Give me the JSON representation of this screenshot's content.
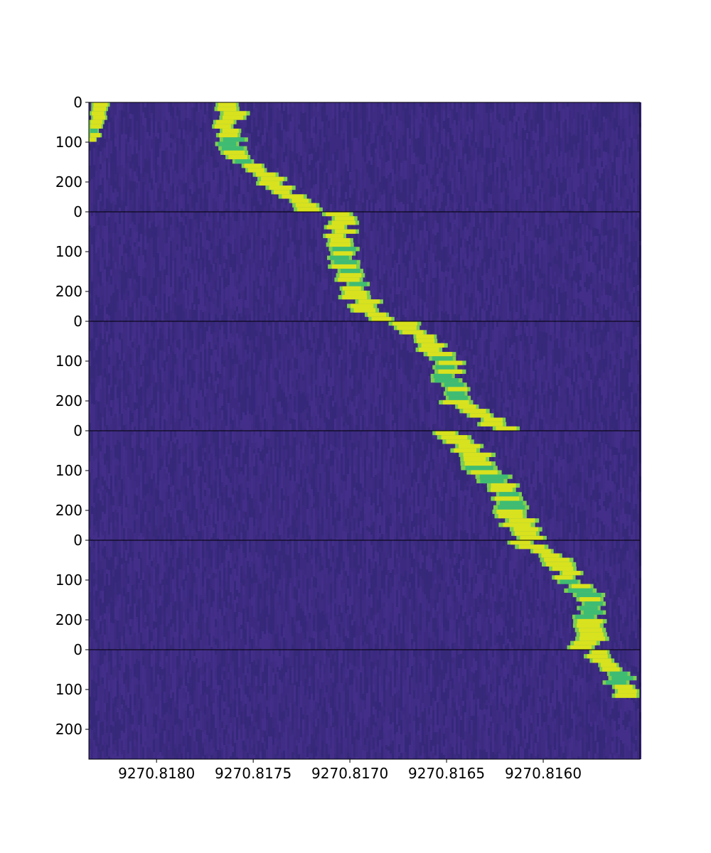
{
  "chart_data": {
    "type": "heatmap",
    "title": "",
    "xlabel": "",
    "ylabel": "",
    "grid": false,
    "legend": "none",
    "colormap": "viridis",
    "colors": {
      "background": "#3b2a7f",
      "background_alt": "#402d86",
      "signal_low": "#3fbc73",
      "signal_mid": "#7dd14f",
      "signal_high": "#d9e21e",
      "separator": "#000000"
    },
    "x_axis": {
      "reversed": true,
      "range": [
        9270.81835,
        9270.8155
      ],
      "ticks": [
        9270.818,
        9270.8175,
        9270.817,
        9270.8165,
        9270.816
      ],
      "tick_labels": [
        "9270.8180",
        "9270.8175",
        "9270.8170",
        "9270.8165",
        "9270.8160"
      ]
    },
    "panels": [
      {
        "y_range": [
          0,
          275
        ],
        "y_ticks": [
          0,
          100,
          200
        ],
        "y_tick_labels": [
          "0",
          "100",
          "200"
        ],
        "tracks": [
          {
            "path": [
              [
                0,
                9270.8183
              ],
              [
                30,
                9270.81831
              ],
              [
                65,
                9270.81833
              ],
              [
                100,
                9270.81835
              ]
            ],
            "width": 9e-05
          },
          {
            "path": [
              [
                0,
                9270.8176
              ],
              [
                40,
                9270.81763
              ],
              [
                100,
                9270.81763
              ],
              [
                150,
                9270.81755
              ],
              [
                200,
                9270.8174
              ],
              [
                275,
                9270.8172
              ]
            ],
            "width": 0.00013
          }
        ]
      },
      {
        "y_range": [
          0,
          275
        ],
        "y_ticks": [
          0,
          100,
          200
        ],
        "y_tick_labels": [
          "0",
          "100",
          "200"
        ],
        "tracks": [
          {
            "path": [
              [
                0,
                9270.81707
              ],
              [
                50,
                9270.81705
              ],
              [
                100,
                9270.81705
              ],
              [
                150,
                9270.817
              ],
              [
                200,
                9270.81697
              ],
              [
                275,
                9270.81685
              ]
            ],
            "width": 0.00015
          }
        ]
      },
      {
        "y_range": [
          0,
          275
        ],
        "y_ticks": [
          0,
          100,
          200
        ],
        "y_tick_labels": [
          "0",
          "100",
          "200"
        ],
        "tracks": [
          {
            "path": [
              [
                0,
                9270.81675
              ],
              [
                50,
                9270.81658
              ],
              [
                100,
                9270.81652
              ],
              [
                150,
                9270.81648
              ],
              [
                200,
                9270.81645
              ],
              [
                275,
                9270.8162
              ]
            ],
            "width": 0.00015
          }
        ]
      },
      {
        "y_range": [
          0,
          275
        ],
        "y_ticks": [
          0,
          100,
          200
        ],
        "y_tick_labels": [
          "0",
          "100",
          "200"
        ],
        "tracks": [
          {
            "path": [
              [
                0,
                9270.81648
              ],
              [
                50,
                9270.81638
              ],
              [
                100,
                9270.8163
              ],
              [
                150,
                9270.81622
              ],
              [
                200,
                9270.81618
              ],
              [
                275,
                9270.81605
              ]
            ],
            "width": 0.00016
          }
        ]
      },
      {
        "y_range": [
          0,
          275
        ],
        "y_ticks": [
          0,
          100,
          200
        ],
        "y_tick_labels": [
          "0",
          "100",
          "200"
        ],
        "tracks": [
          {
            "path": [
              [
                0,
                9270.8161
              ],
              [
                50,
                9270.81595
              ],
              [
                100,
                9270.81585
              ],
              [
                150,
                9270.81578
              ],
              [
                200,
                9270.81575
              ],
              [
                275,
                9270.81578
              ]
            ],
            "width": 0.00015
          }
        ]
      },
      {
        "y_range": [
          0,
          275
        ],
        "y_ticks": [
          0,
          100,
          200
        ],
        "y_tick_labels": [
          "0",
          "100",
          "200"
        ],
        "tracks": [
          {
            "path": [
              [
                0,
                9270.81575
              ],
              [
                50,
                9270.81565
              ],
              [
                100,
                9270.81557
              ],
              [
                125,
                9270.81553
              ]
            ],
            "width": 0.00013
          }
        ]
      }
    ]
  }
}
